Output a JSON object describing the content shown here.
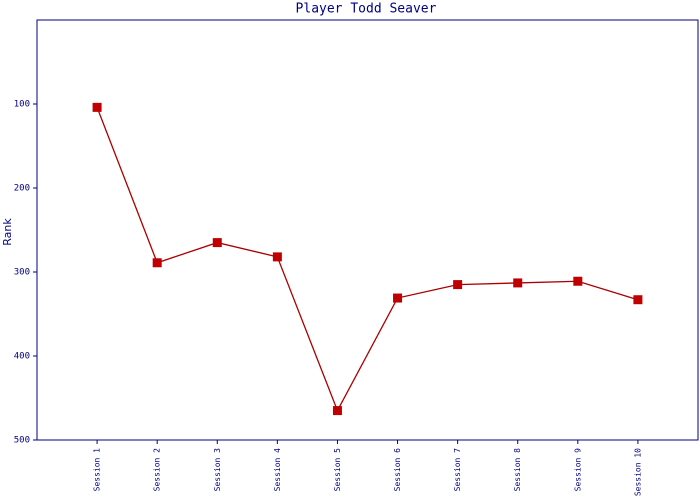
{
  "chart_data": {
    "type": "line",
    "title": "Player Todd Seaver",
    "y_label": "Rank",
    "categories": [
      "Session 1",
      "Session 2",
      "Session 3",
      "Session 4",
      "Session 5",
      "Session 6",
      "Session 7",
      "Session 8",
      "Session 9",
      "Session 10"
    ],
    "series": [
      {
        "name": "Rank",
        "color": "#aa0000",
        "values": [
          104,
          289,
          265,
          282,
          465,
          331,
          315,
          313,
          311,
          333
        ]
      }
    ],
    "ylim": [
      0,
      500
    ],
    "y_inverted": true,
    "yticks": [
      100,
      200,
      300,
      400,
      500
    ]
  }
}
